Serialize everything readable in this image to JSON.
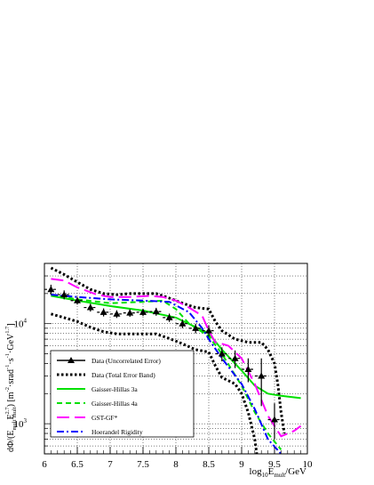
{
  "chart_data": {
    "type": "line",
    "xlabel": "log₁₀Eₘᵤₗₜ/GeV",
    "xlabel_parts": {
      "main": "log",
      "sub1": "10",
      "mid": "E",
      "sub2": "mult",
      "tail": "/GeV"
    },
    "ylabel_parts": {
      "a": "dΦ/(E",
      "a_sub": "mult",
      "b": "E",
      "b_sup": "2.7",
      "b_sub": "mult",
      "c": ")  [m",
      "c_sup": "-2",
      "d": "·srad",
      "d_sup": "-1",
      "e": "·s",
      "e_sup": "-1",
      "f": "·GeV",
      "f_sup": "1.7",
      "g": "]"
    },
    "xlim": [
      6,
      10
    ],
    "ylim": [
      500,
      40000
    ],
    "y_scale": "log",
    "grid": true,
    "x_ticks": [
      "6",
      "6.5",
      "7",
      "7.5",
      "8",
      "8.5",
      "9",
      "9.5",
      "10"
    ],
    "y_ticks": [
      {
        "value": 1000,
        "base": "10",
        "exp": "3"
      },
      {
        "value": 10000,
        "base": "10",
        "exp": "4"
      }
    ],
    "legend_position": "bottom-left",
    "series": [
      {
        "name": "Data (Uncorrelated Error)",
        "kind": "points",
        "color": "#000000",
        "points": [
          {
            "x": 6.1,
            "y": 22000,
            "lo": 19500,
            "hi": 24500,
            "xerr": 0.1
          },
          {
            "x": 6.3,
            "y": 19500,
            "lo": 17500,
            "hi": 21500,
            "xerr": 0.1
          },
          {
            "x": 6.5,
            "y": 17000,
            "lo": 15500,
            "hi": 18500,
            "xerr": 0.1
          },
          {
            "x": 6.7,
            "y": 14500,
            "lo": 13200,
            "hi": 15800,
            "xerr": 0.1
          },
          {
            "x": 6.9,
            "y": 13000,
            "lo": 11800,
            "hi": 14200,
            "xerr": 0.1
          },
          {
            "x": 7.1,
            "y": 12500,
            "lo": 11400,
            "hi": 13600,
            "xerr": 0.1
          },
          {
            "x": 7.3,
            "y": 12800,
            "lo": 11700,
            "hi": 13900,
            "xerr": 0.1
          },
          {
            "x": 7.5,
            "y": 13000,
            "lo": 11900,
            "hi": 14100,
            "xerr": 0.1
          },
          {
            "x": 7.7,
            "y": 13200,
            "lo": 12000,
            "hi": 14400,
            "xerr": 0.1
          },
          {
            "x": 7.9,
            "y": 11500,
            "lo": 10400,
            "hi": 12600,
            "xerr": 0.1
          },
          {
            "x": 8.1,
            "y": 10000,
            "lo": 9000,
            "hi": 11000,
            "xerr": 0.1
          },
          {
            "x": 8.3,
            "y": 9000,
            "lo": 8000,
            "hi": 10000,
            "xerr": 0.1
          },
          {
            "x": 8.5,
            "y": 8500,
            "lo": 7400,
            "hi": 9600,
            "xerr": 0.1
          },
          {
            "x": 8.7,
            "y": 5000,
            "lo": 4200,
            "hi": 5800,
            "xerr": 0.1
          },
          {
            "x": 8.9,
            "y": 4500,
            "lo": 3600,
            "hi": 5400,
            "xerr": 0.1
          },
          {
            "x": 9.1,
            "y": 3500,
            "lo": 2600,
            "hi": 4500,
            "xerr": 0.1
          },
          {
            "x": 9.3,
            "y": 3000,
            "lo": 1500,
            "hi": 4500,
            "xerr": 0.1
          },
          {
            "x": 9.5,
            "y": 1100,
            "lo": 700,
            "hi": 1600,
            "xerr": 0.1
          }
        ]
      },
      {
        "name": "Data (Total Error Band)",
        "kind": "band",
        "color": "#000000",
        "upper": [
          [
            6.1,
            36000
          ],
          [
            6.3,
            31000
          ],
          [
            6.5,
            26000
          ],
          [
            6.7,
            22000
          ],
          [
            6.9,
            20000
          ],
          [
            7.1,
            19500
          ],
          [
            7.3,
            20000
          ],
          [
            7.5,
            20000
          ],
          [
            7.7,
            20000
          ],
          [
            7.9,
            18000
          ],
          [
            8.1,
            16000
          ],
          [
            8.3,
            14500
          ],
          [
            8.5,
            14000
          ],
          [
            8.6,
            10500
          ],
          [
            8.7,
            8500
          ],
          [
            8.9,
            7000
          ],
          [
            9.1,
            6500
          ],
          [
            9.3,
            6500
          ],
          [
            9.4,
            5500
          ],
          [
            9.5,
            4000
          ],
          [
            9.55,
            2500
          ],
          [
            9.6,
            1300
          ],
          [
            9.65,
            800
          ]
        ],
        "lower": [
          [
            6.1,
            12500
          ],
          [
            6.3,
            11500
          ],
          [
            6.5,
            10500
          ],
          [
            6.7,
            9200
          ],
          [
            6.9,
            8300
          ],
          [
            7.1,
            7900
          ],
          [
            7.3,
            7900
          ],
          [
            7.5,
            7900
          ],
          [
            7.7,
            7900
          ],
          [
            7.9,
            7100
          ],
          [
            8.1,
            6300
          ],
          [
            8.3,
            5500
          ],
          [
            8.5,
            5200
          ],
          [
            8.6,
            3800
          ],
          [
            8.7,
            2900
          ],
          [
            8.9,
            2500
          ],
          [
            9.0,
            2000
          ],
          [
            9.1,
            1300
          ],
          [
            9.2,
            700
          ],
          [
            9.23,
            500
          ]
        ]
      },
      {
        "name": "Gaisser-Hillas 3a",
        "kind": "line",
        "color": "#00e000",
        "dash": "",
        "points": [
          [
            6.1,
            19000
          ],
          [
            6.5,
            17000
          ],
          [
            7.0,
            15000
          ],
          [
            7.5,
            13500
          ],
          [
            8.0,
            11500
          ],
          [
            8.5,
            8000
          ],
          [
            8.7,
            5500
          ],
          [
            9.0,
            3400
          ],
          [
            9.2,
            2400
          ],
          [
            9.4,
            2000
          ],
          [
            9.6,
            1900
          ],
          [
            9.9,
            1800
          ]
        ]
      },
      {
        "name": "Gaisser-Hillas 4a",
        "kind": "line",
        "color": "#00e000",
        "dash": "6,4",
        "points": [
          [
            6.1,
            19500
          ],
          [
            6.5,
            17500
          ],
          [
            7.0,
            16000
          ],
          [
            7.5,
            16500
          ],
          [
            7.8,
            17000
          ],
          [
            8.0,
            14000
          ],
          [
            8.2,
            10000
          ],
          [
            8.5,
            7500
          ],
          [
            8.7,
            5000
          ],
          [
            9.0,
            2400
          ],
          [
            9.2,
            1300
          ],
          [
            9.4,
            800
          ],
          [
            9.6,
            550
          ]
        ]
      },
      {
        "name": "GST-GF*",
        "kind": "line",
        "color": "#ff00ff",
        "dash": "14,6",
        "points": [
          [
            6.1,
            28000
          ],
          [
            6.3,
            27000
          ],
          [
            6.5,
            23000
          ],
          [
            6.8,
            19500
          ],
          [
            7.0,
            18500
          ],
          [
            7.3,
            18500
          ],
          [
            7.6,
            19000
          ],
          [
            7.8,
            18500
          ],
          [
            8.0,
            17000
          ],
          [
            8.2,
            14500
          ],
          [
            8.4,
            12000
          ],
          [
            8.5,
            8500
          ],
          [
            8.6,
            6500
          ],
          [
            8.7,
            6300
          ],
          [
            8.8,
            6000
          ],
          [
            9.0,
            4500
          ],
          [
            9.2,
            2500
          ],
          [
            9.4,
            1200
          ],
          [
            9.6,
            750
          ],
          [
            9.8,
            850
          ],
          [
            9.9,
            950
          ]
        ]
      },
      {
        "name": "Hoerandel Rigidity",
        "kind": "line",
        "color": "#0000ff",
        "dash": "8,3,2,3",
        "points": [
          [
            6.1,
            19500
          ],
          [
            6.5,
            18500
          ],
          [
            7.0,
            17500
          ],
          [
            7.5,
            17000
          ],
          [
            7.9,
            16500
          ],
          [
            8.2,
            13000
          ],
          [
            8.4,
            9000
          ],
          [
            8.5,
            7000
          ],
          [
            8.7,
            4500
          ],
          [
            9.0,
            2500
          ],
          [
            9.2,
            1400
          ],
          [
            9.4,
            700
          ],
          [
            9.6,
            500
          ]
        ]
      }
    ]
  }
}
